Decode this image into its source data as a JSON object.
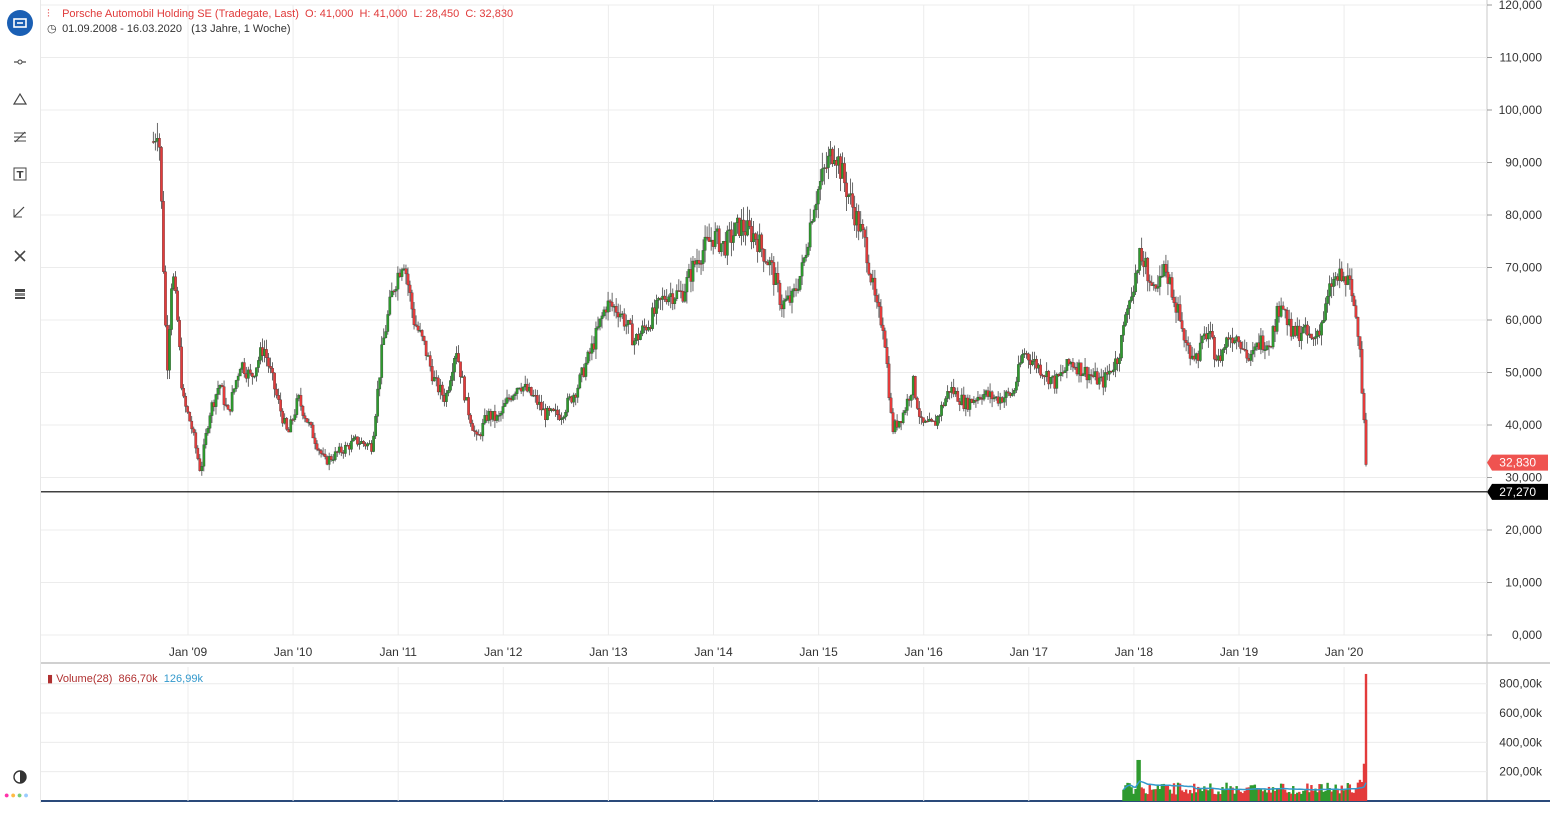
{
  "header": {
    "title": "Porsche Automobil Holding SE (Tradegate, Last)",
    "ohlc": {
      "o_label": "O:",
      "o": "41,000",
      "h_label": "H:",
      "h": "41,000",
      "l_label": "L:",
      "l": "28,450",
      "c_label": "C:",
      "c": "32,830"
    },
    "range": "01.09.2008 - 16.03.2020",
    "duration": "(13 Jahre, 1 Woche)"
  },
  "toolbar": {
    "items": [
      "chart-type-icon",
      "line-tool-icon",
      "shape-tool-icon",
      "fibonacci-icon",
      "text-tool-icon",
      "annotation-icon",
      "tools-icon",
      "layers-icon",
      "contrast-icon"
    ]
  },
  "colors": {
    "up": "#2e9a2e",
    "down": "#e33b3b",
    "accent": "#1a5fb4",
    "price_tag": "#ef5350",
    "ref_tag": "#000000",
    "volume_ma": "#3399cc"
  },
  "volume_legend": {
    "name": "Volume(28)",
    "value": "866,70k",
    "ma": "126,99k"
  },
  "chart_data": {
    "type": "candlestick",
    "x_labels": [
      "Jan '09",
      "Jan '10",
      "Jan '11",
      "Jan '12",
      "Jan '13",
      "Jan '14",
      "Jan '15",
      "Jan '16",
      "Jan '17",
      "Jan '18",
      "Jan '19",
      "Jan '20"
    ],
    "x_years": [
      2009,
      2010,
      2011,
      2012,
      2013,
      2014,
      2015,
      2016,
      2017,
      2018,
      2019,
      2020
    ],
    "x_start": 2008.67,
    "x_end": 2020.21,
    "y_ticks": [
      "120,000",
      "110,000",
      "100,000",
      "90,000",
      "80,000",
      "70,000",
      "60,000",
      "50,000",
      "40,000",
      "30,000",
      "20,000",
      "10,000",
      "0,000"
    ],
    "ylim": [
      0,
      120
    ],
    "last_price": {
      "label": "32,830",
      "value": 32.83
    },
    "reference_line": {
      "label": "27,270",
      "value": 27.27
    },
    "price_path": [
      [
        2008.67,
        94
      ],
      [
        2008.72,
        98
      ],
      [
        2008.75,
        80
      ],
      [
        2008.8,
        50
      ],
      [
        2008.85,
        70
      ],
      [
        2008.9,
        60
      ],
      [
        2008.95,
        45
      ],
      [
        2009.03,
        40
      ],
      [
        2009.12,
        31
      ],
      [
        2009.2,
        42
      ],
      [
        2009.3,
        48
      ],
      [
        2009.38,
        42
      ],
      [
        2009.5,
        52
      ],
      [
        2009.6,
        49
      ],
      [
        2009.72,
        55
      ],
      [
        2009.85,
        45
      ],
      [
        2009.95,
        38
      ],
      [
        2010.05,
        45
      ],
      [
        2010.15,
        40
      ],
      [
        2010.3,
        33
      ],
      [
        2010.45,
        35
      ],
      [
        2010.6,
        37
      ],
      [
        2010.75,
        36
      ],
      [
        2010.85,
        55
      ],
      [
        2010.95,
        66
      ],
      [
        2011.05,
        72
      ],
      [
        2011.15,
        60
      ],
      [
        2011.25,
        55
      ],
      [
        2011.35,
        48
      ],
      [
        2011.45,
        45
      ],
      [
        2011.55,
        55
      ],
      [
        2011.65,
        44
      ],
      [
        2011.75,
        37
      ],
      [
        2011.85,
        42
      ],
      [
        2011.95,
        41
      ],
      [
        2012.05,
        45
      ],
      [
        2012.15,
        48
      ],
      [
        2012.3,
        45
      ],
      [
        2012.4,
        42
      ],
      [
        2012.55,
        42
      ],
      [
        2012.7,
        47
      ],
      [
        2012.85,
        55
      ],
      [
        2012.98,
        63
      ],
      [
        2013.1,
        62
      ],
      [
        2013.25,
        56
      ],
      [
        2013.4,
        60
      ],
      [
        2013.55,
        65
      ],
      [
        2013.7,
        65
      ],
      [
        2013.85,
        72
      ],
      [
        2014.0,
        76
      ],
      [
        2014.1,
        74
      ],
      [
        2014.25,
        78
      ],
      [
        2014.4,
        76
      ],
      [
        2014.55,
        70
      ],
      [
        2014.65,
        63
      ],
      [
        2014.75,
        64
      ],
      [
        2014.85,
        70
      ],
      [
        2014.95,
        82
      ],
      [
        2015.05,
        88
      ],
      [
        2015.15,
        93
      ],
      [
        2015.25,
        86
      ],
      [
        2015.35,
        80
      ],
      [
        2015.45,
        74
      ],
      [
        2015.55,
        62
      ],
      [
        2015.62,
        59
      ],
      [
        2015.7,
        39
      ],
      [
        2015.8,
        42
      ],
      [
        2015.9,
        48
      ],
      [
        2015.98,
        40
      ],
      [
        2016.1,
        40
      ],
      [
        2016.25,
        47
      ],
      [
        2016.4,
        44
      ],
      [
        2016.55,
        46
      ],
      [
        2016.7,
        45
      ],
      [
        2016.85,
        46
      ],
      [
        2016.95,
        54
      ],
      [
        2017.1,
        51
      ],
      [
        2017.25,
        48
      ],
      [
        2017.4,
        52
      ],
      [
        2017.55,
        50
      ],
      [
        2017.7,
        48
      ],
      [
        2017.85,
        53
      ],
      [
        2017.95,
        63
      ],
      [
        2018.05,
        72
      ],
      [
        2018.12,
        70
      ],
      [
        2018.2,
        64
      ],
      [
        2018.3,
        70
      ],
      [
        2018.4,
        63
      ],
      [
        2018.5,
        55
      ],
      [
        2018.6,
        53
      ],
      [
        2018.7,
        58
      ],
      [
        2018.8,
        52
      ],
      [
        2018.9,
        57
      ],
      [
        2019.0,
        57
      ],
      [
        2019.1,
        52
      ],
      [
        2019.2,
        56
      ],
      [
        2019.3,
        56
      ],
      [
        2019.4,
        64
      ],
      [
        2019.5,
        57
      ],
      [
        2019.6,
        58
      ],
      [
        2019.7,
        56
      ],
      [
        2019.8,
        60
      ],
      [
        2019.88,
        67
      ],
      [
        2019.95,
        68
      ],
      [
        2020.05,
        67
      ],
      [
        2020.12,
        60
      ],
      [
        2020.15,
        56
      ],
      [
        2020.17,
        45
      ],
      [
        2020.19,
        40
      ],
      [
        2020.21,
        32.83
      ]
    ],
    "volume": {
      "ylim": [
        0,
        880
      ],
      "y_ticks": [
        "800,00k",
        "600,00k",
        "400,00k",
        "200,00k"
      ],
      "start": 2017.9,
      "base_level": 90,
      "peak_2018": 280,
      "pre_crash": 260,
      "last": 866.7
    }
  }
}
